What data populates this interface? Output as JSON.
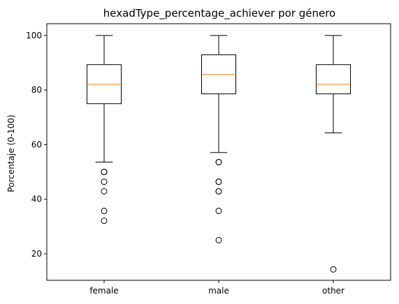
{
  "chart_data": {
    "type": "box",
    "title": "hexadType_percentage_achiever por género",
    "xlabel": "",
    "ylabel": "Porcentaje (0-100)",
    "ylim": [
      10.3,
      104.3
    ],
    "yticks": [
      20,
      40,
      60,
      80,
      100
    ],
    "grid": false,
    "categories": [
      "female",
      "male",
      "other"
    ],
    "boxes": [
      {
        "category": "female",
        "whisker_low": 53.6,
        "q1": 75.0,
        "median": 82.1,
        "q3": 89.3,
        "whisker_high": 100,
        "outliers": [
          50,
          50,
          46.4,
          42.9,
          35.7,
          32.1
        ]
      },
      {
        "category": "male",
        "whisker_low": 57.1,
        "q1": 78.6,
        "median": 85.7,
        "q3": 92.9,
        "whisker_high": 100,
        "outliers": [
          53.6,
          53.6,
          46.4,
          46.4,
          42.9,
          42.9,
          35.7,
          25.0
        ]
      },
      {
        "category": "other",
        "whisker_low": 64.3,
        "q1": 78.6,
        "median": 82.1,
        "q3": 89.3,
        "whisker_high": 100,
        "outliers": [
          14.3
        ]
      }
    ],
    "colors": {
      "box": "#000000",
      "median": "#ff7f0e",
      "outlier": "#000000"
    }
  }
}
